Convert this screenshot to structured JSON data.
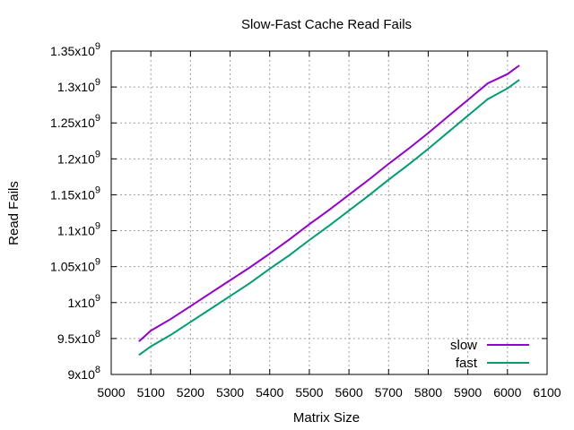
{
  "chart_data": {
    "type": "line",
    "title": "Slow-Fast Cache Read Fails",
    "xlabel": "Matrix Size",
    "ylabel": "Read Fails",
    "xlim": [
      5000,
      6100
    ],
    "ylim": [
      900000000,
      1350000000
    ],
    "x_ticks": [
      5000,
      5100,
      5200,
      5300,
      5400,
      5500,
      5600,
      5700,
      5800,
      5900,
      6000,
      6100
    ],
    "y_ticks": [
      {
        "value": 900000000,
        "mantissa": "9",
        "exponent": "8"
      },
      {
        "value": 950000000,
        "mantissa": "9.5",
        "exponent": "8"
      },
      {
        "value": 1000000000,
        "mantissa": "1",
        "exponent": "9"
      },
      {
        "value": 1050000000,
        "mantissa": "1.05",
        "exponent": "9"
      },
      {
        "value": 1100000000,
        "mantissa": "1.1",
        "exponent": "9"
      },
      {
        "value": 1150000000,
        "mantissa": "1.15",
        "exponent": "9"
      },
      {
        "value": 1200000000,
        "mantissa": "1.2",
        "exponent": "9"
      },
      {
        "value": 1250000000,
        "mantissa": "1.25",
        "exponent": "9"
      },
      {
        "value": 1300000000,
        "mantissa": "1.3",
        "exponent": "9"
      },
      {
        "value": 1350000000,
        "mantissa": "1.35",
        "exponent": "9"
      }
    ],
    "y_tick_base": "x10",
    "grid": true,
    "legend_position": "bottom-right",
    "series": [
      {
        "name": "slow",
        "color": "#9400d3",
        "x": [
          5070,
          5100,
          5150,
          5200,
          5250,
          5300,
          5350,
          5400,
          5450,
          5500,
          5550,
          5600,
          5650,
          5700,
          5750,
          5800,
          5850,
          5900,
          5950,
          6000,
          6030
        ],
        "y": [
          946000000,
          961000000,
          977000000,
          995000000,
          1013000000,
          1031000000,
          1049000000,
          1068000000,
          1088000000,
          1109000000,
          1129000000,
          1150000000,
          1171000000,
          1193000000,
          1214000000,
          1236000000,
          1259000000,
          1282000000,
          1305000000,
          1318000000,
          1330000000
        ]
      },
      {
        "name": "fast",
        "color": "#009e73",
        "x": [
          5070,
          5100,
          5150,
          5200,
          5250,
          5300,
          5350,
          5400,
          5450,
          5500,
          5550,
          5600,
          5650,
          5700,
          5750,
          5800,
          5850,
          5900,
          5950,
          6000,
          6030
        ],
        "y": [
          927000000,
          939000000,
          955000000,
          973000000,
          991000000,
          1009000000,
          1027000000,
          1047000000,
          1066000000,
          1087000000,
          1107000000,
          1128000000,
          1149000000,
          1171000000,
          1192000000,
          1214000000,
          1237000000,
          1260000000,
          1283000000,
          1298000000,
          1310000000
        ]
      }
    ]
  }
}
